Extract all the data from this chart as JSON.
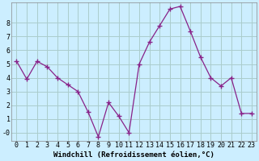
{
  "x": [
    0,
    1,
    2,
    3,
    4,
    5,
    6,
    7,
    8,
    9,
    10,
    11,
    12,
    13,
    14,
    15,
    16,
    17,
    18,
    19,
    20,
    21,
    22,
    23
  ],
  "y": [
    5.2,
    3.9,
    5.2,
    4.8,
    4.0,
    3.5,
    3.0,
    1.5,
    -0.3,
    2.2,
    1.2,
    0.0,
    5.0,
    6.6,
    7.8,
    9.0,
    9.2,
    7.4,
    5.5,
    4.0,
    3.4,
    4.0,
    1.4,
    1.4
  ],
  "line_color": "#882288",
  "marker": "+",
  "marker_size": 4,
  "bg_color": "#cceeff",
  "grid_color": "#aacccc",
  "xlabel": "Windchill (Refroidissement éolien,°C)",
  "xlabel_fontsize": 6.5,
  "ylabel_ticks": [
    0,
    1,
    2,
    3,
    4,
    5,
    6,
    7,
    8
  ],
  "ylim": [
    -0.6,
    9.5
  ],
  "xlim": [
    -0.5,
    23.5
  ],
  "tick_fontsize": 6
}
